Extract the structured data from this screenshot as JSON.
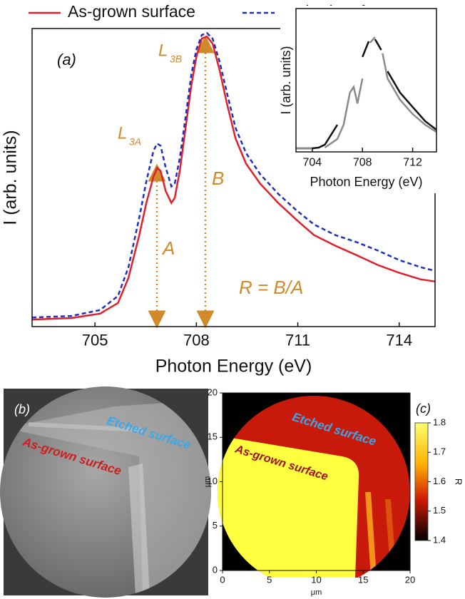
{
  "chart_data": [
    {
      "type": "line",
      "label": "(a)",
      "x": [
        703.14,
        704.3,
        705.15,
        705.68,
        705.99,
        706.31,
        706.52,
        706.73,
        706.84,
        706.94,
        707.09,
        707.26,
        707.36,
        707.51,
        707.68,
        707.85,
        708.0,
        708.16,
        708.31,
        708.48,
        708.69,
        708.9,
        709.16,
        709.47,
        709.89,
        710.42,
        710.95,
        711.48,
        712.11,
        712.74,
        713.38,
        714.01,
        714.64,
        715.06
      ],
      "series": [
        {
          "name": "As-grown surface",
          "color": "#e0202a",
          "dashed": false,
          "values": [
            0.024,
            0.029,
            0.044,
            0.08,
            0.165,
            0.31,
            0.419,
            0.508,
            0.538,
            0.528,
            0.46,
            0.419,
            0.436,
            0.528,
            0.673,
            0.818,
            0.915,
            0.976,
            0.983,
            0.959,
            0.867,
            0.758,
            0.637,
            0.552,
            0.484,
            0.419,
            0.363,
            0.31,
            0.274,
            0.242,
            0.208,
            0.182,
            0.16,
            0.153
          ]
        },
        {
          "name": "Etched surface",
          "color": "#1f2fbf",
          "dashed": true,
          "values": [
            0.031,
            0.036,
            0.056,
            0.104,
            0.201,
            0.37,
            0.492,
            0.596,
            0.62,
            0.613,
            0.54,
            0.475,
            0.484,
            0.571,
            0.709,
            0.855,
            0.939,
            0.988,
            0.995,
            0.976,
            0.896,
            0.794,
            0.673,
            0.588,
            0.516,
            0.45,
            0.395,
            0.346,
            0.31,
            0.286,
            0.257,
            0.225,
            0.201,
            0.189
          ]
        }
      ],
      "xlim": [
        703.14,
        715.06
      ],
      "xticks": [
        705,
        708,
        711,
        714
      ],
      "ylim": [
        0,
        1.01
      ],
      "xlabel": "Photon Energy (eV)",
      "ylabel": "I (arb. units)",
      "legend": "top",
      "peak_labels": [
        {
          "text": "L",
          "subscript": "3A"
        },
        {
          "text": "L",
          "subscript": "3B"
        }
      ],
      "intensity_labels": [
        "A",
        "B"
      ],
      "ratio_label": "R = B/A"
    },
    {
      "type": "line",
      "x": [
        702.7,
        704,
        704.5,
        705,
        706,
        706.5,
        707,
        707.3,
        707.6,
        708,
        708.5,
        708.6,
        709,
        709.5,
        709.6,
        710,
        711,
        712,
        713,
        713.9
      ],
      "series": [
        {
          "color": "#111111",
          "dashed": false,
          "values": [
            0.025,
            0.025,
            0.03,
            0.05,
            0.189,
            null,
            0.463,
            null,
            null,
            0.662,
            0.771,
            null,
            0.786,
            0.711,
            null,
            0.562,
            0.413,
            0.313,
            0.214,
            0.154
          ]
        },
        {
          "color": "#8a8a8a",
          "dashed": false,
          "values": [
            0.025,
            0.025,
            null,
            0.03,
            0.09,
            0.189,
            0.413,
            0.453,
            0.338,
            0.512,
            null,
            0.761,
            0.801,
            null,
            0.687,
            0.512,
            0.363,
            0.264,
            0.189,
            0.139
          ]
        }
      ],
      "xlim": [
        702.7,
        713.9
      ],
      "xticks": [
        704,
        708,
        712
      ],
      "ylim": [
        0,
        1
      ],
      "xlabel": "Photon Energy (eV)",
      "ylabel": "I (arb. units)"
    },
    {
      "type": "image",
      "label": "(b)",
      "annotations": [
        "Etched surface",
        "As-grown surface"
      ]
    },
    {
      "type": "heatmap",
      "label": "(c)",
      "xlim": [
        0,
        20
      ],
      "xticks": [
        0,
        5,
        10,
        15,
        20
      ],
      "ylim": [
        0,
        20
      ],
      "yticks": [
        0,
        5,
        10,
        15,
        20
      ],
      "xlabel": "μm",
      "ylabel": "μm",
      "colorbar": {
        "label": "R",
        "lim": [
          1.4,
          1.8
        ],
        "ticks": [
          1.4,
          1.5,
          1.6,
          1.7,
          1.8
        ]
      },
      "annotations": [
        "Etched surface",
        "As-grown surface"
      ]
    }
  ]
}
